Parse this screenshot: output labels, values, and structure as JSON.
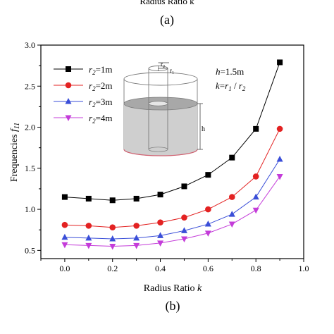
{
  "top_panel": {
    "xlabel": "Radius Ratio k",
    "caption": "(a)"
  },
  "bottom_panel": {
    "caption": "(b)"
  },
  "chart_data": {
    "type": "line",
    "title": "",
    "xlabel": "Radius Ratio k",
    "ylabel": "Frequencies f11",
    "xlim": [
      -0.1,
      1.0
    ],
    "ylim": [
      0.4,
      3.0
    ],
    "xticks": [
      "0.0",
      "0.2",
      "0.4",
      "0.6",
      "0.8",
      "1.0"
    ],
    "yticks": [
      "0.5",
      "1.0",
      "1.5",
      "2.0",
      "2.5",
      "3.0"
    ],
    "grid": false,
    "legend_position": "top-left",
    "x": [
      0.0,
      0.1,
      0.2,
      0.3,
      0.4,
      0.5,
      0.6,
      0.7,
      0.8,
      0.9
    ],
    "series": [
      {
        "name": "r2=1m",
        "color": "#000000",
        "marker": "square",
        "values": [
          1.15,
          1.13,
          1.11,
          1.13,
          1.18,
          1.28,
          1.42,
          1.63,
          1.98,
          2.79
        ]
      },
      {
        "name": "r2=2m",
        "color": "#e32222",
        "marker": "circle",
        "values": [
          0.81,
          0.8,
          0.78,
          0.8,
          0.84,
          0.9,
          1.0,
          1.15,
          1.4,
          1.98
        ]
      },
      {
        "name": "r2=3m",
        "color": "#3a4ed8",
        "marker": "triangle-up",
        "values": [
          0.66,
          0.65,
          0.64,
          0.65,
          0.68,
          0.74,
          0.82,
          0.94,
          1.15,
          1.61
        ]
      },
      {
        "name": "r2=4m",
        "color": "#c43cd9",
        "marker": "triangle-down",
        "values": [
          0.57,
          0.56,
          0.55,
          0.56,
          0.59,
          0.64,
          0.71,
          0.82,
          0.99,
          1.4
        ]
      }
    ],
    "inset_labels": {
      "r2": "r2",
      "r1": "r1",
      "h": "h"
    },
    "annotations": [
      "h=1.5m",
      "k=r1 / r2"
    ]
  }
}
